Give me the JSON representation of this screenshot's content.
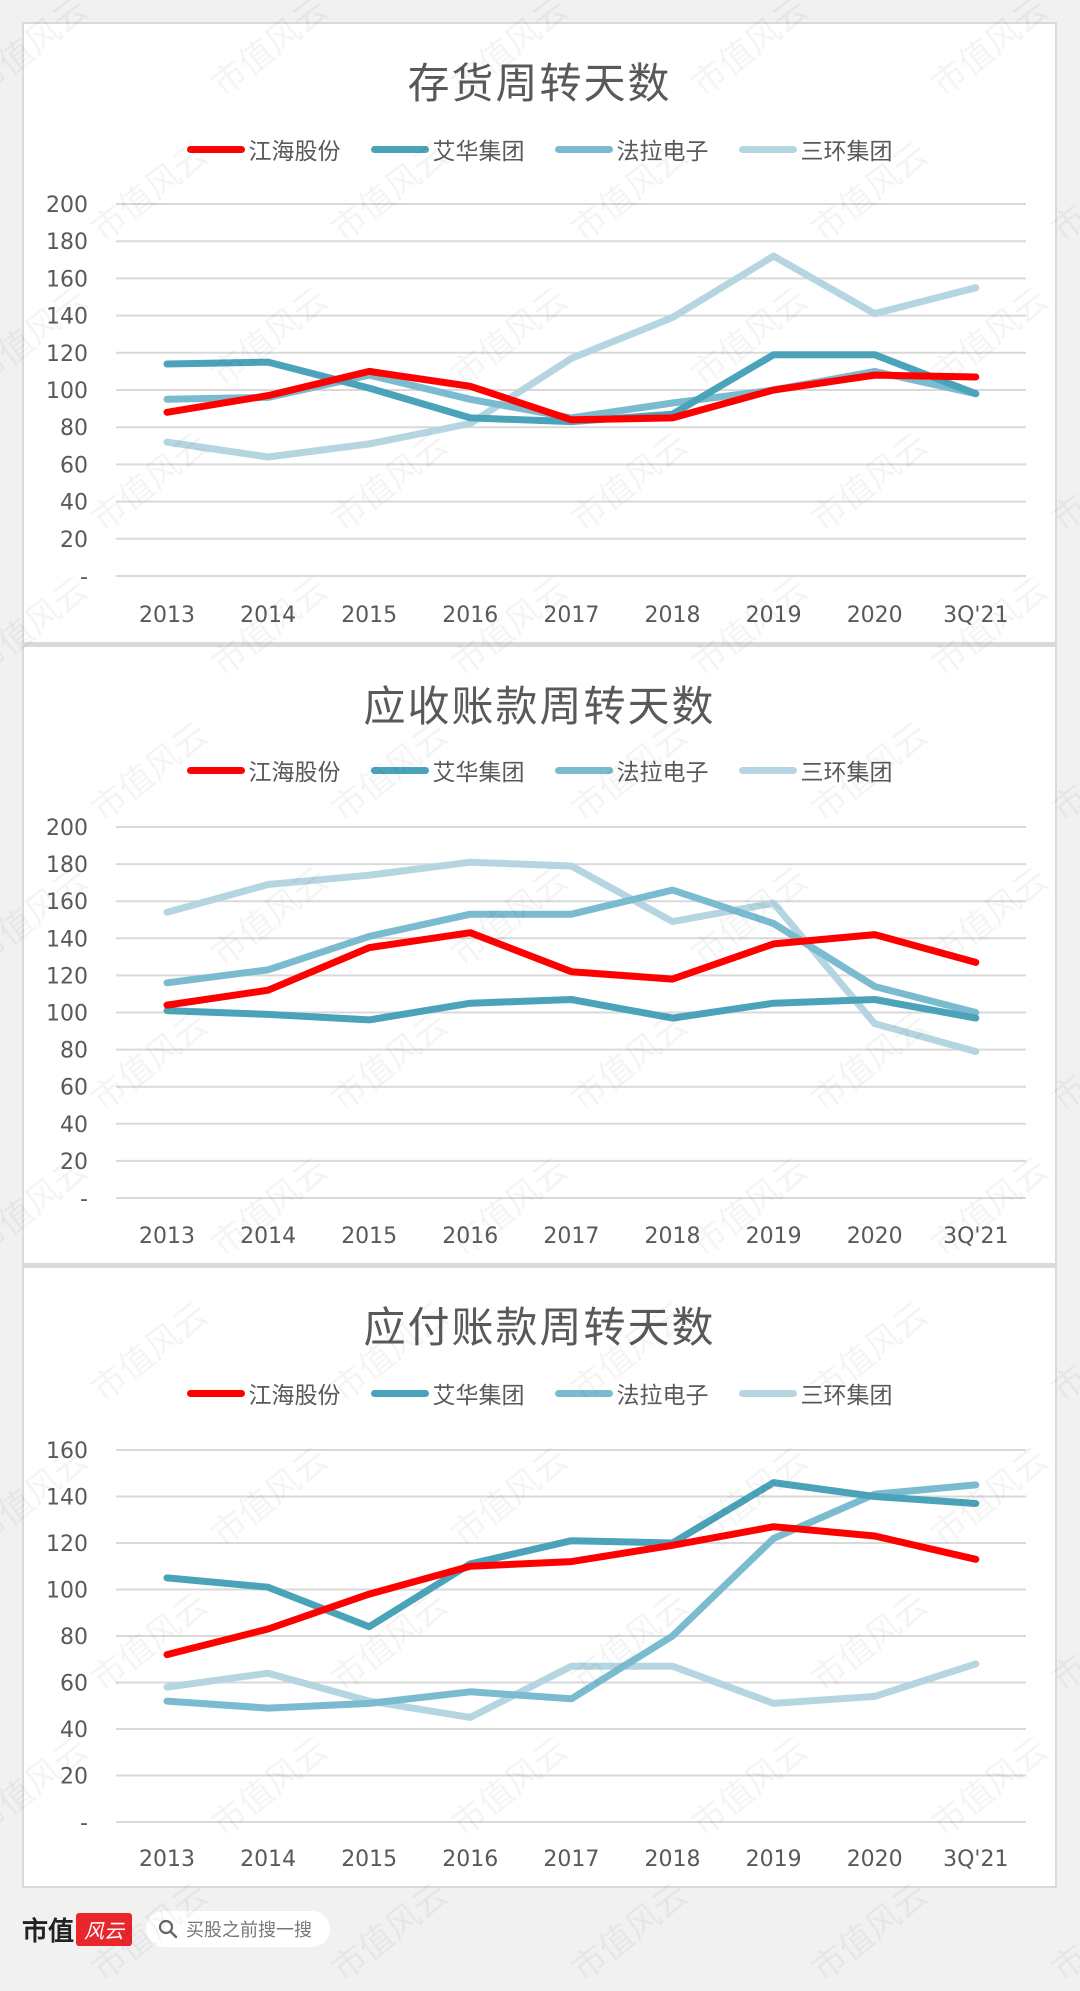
{
  "legend": {
    "series": [
      {
        "name": "江海股份",
        "color": "#FF0000"
      },
      {
        "name": "艾华集团",
        "color": "#4BA3BA"
      },
      {
        "name": "法拉电子",
        "color": "#7BBBD0"
      },
      {
        "name": "三环集团",
        "color": "#B5D6E1"
      }
    ]
  },
  "footer": {
    "brand_text": "市值",
    "brand_badge": "风云",
    "search_placeholder": "买股之前搜一搜"
  },
  "watermark_text": "市值风云",
  "chart_data": [
    {
      "type": "line",
      "title": "存货周转天数",
      "xlabel": "",
      "ylabel": "",
      "categories": [
        "2013",
        "2014",
        "2015",
        "2016",
        "2017",
        "2018",
        "2019",
        "2020",
        "3Q'21"
      ],
      "yticks": [
        "-",
        "20",
        "40",
        "60",
        "80",
        "100",
        "120",
        "140",
        "160",
        "180",
        "200"
      ],
      "ylim": [
        0,
        200
      ],
      "grid": true,
      "legend_position": "top",
      "series": [
        {
          "name": "江海股份",
          "color": "#FF0000",
          "values": [
            88,
            97,
            110,
            102,
            84,
            85,
            100,
            108,
            107
          ]
        },
        {
          "name": "艾华集团",
          "color": "#4BA3BA",
          "values": [
            114,
            115,
            101,
            85,
            83,
            87,
            119,
            119,
            98
          ]
        },
        {
          "name": "法拉电子",
          "color": "#7BBBD0",
          "values": [
            95,
            96,
            108,
            95,
            85,
            93,
            100,
            110,
            98
          ]
        },
        {
          "name": "三环集团",
          "color": "#B5D6E1",
          "values": [
            72,
            64,
            71,
            82,
            117,
            139,
            172,
            141,
            155
          ]
        }
      ]
    },
    {
      "type": "line",
      "title": "应收账款周转天数",
      "xlabel": "",
      "ylabel": "",
      "categories": [
        "2013",
        "2014",
        "2015",
        "2016",
        "2017",
        "2018",
        "2019",
        "2020",
        "3Q'21"
      ],
      "yticks": [
        "-",
        "20",
        "40",
        "60",
        "80",
        "100",
        "120",
        "140",
        "160",
        "180",
        "200"
      ],
      "ylim": [
        0,
        200
      ],
      "grid": true,
      "legend_position": "top",
      "series": [
        {
          "name": "江海股份",
          "color": "#FF0000",
          "values": [
            104,
            112,
            135,
            143,
            122,
            118,
            137,
            142,
            127
          ]
        },
        {
          "name": "艾华集团",
          "color": "#4BA3BA",
          "values": [
            101,
            99,
            96,
            105,
            107,
            97,
            105,
            107,
            97
          ]
        },
        {
          "name": "法拉电子",
          "color": "#7BBBD0",
          "values": [
            116,
            123,
            141,
            153,
            153,
            166,
            148,
            114,
            100
          ]
        },
        {
          "name": "三环集团",
          "color": "#B5D6E1",
          "values": [
            154,
            169,
            174,
            181,
            179,
            149,
            159,
            94,
            79
          ]
        }
      ]
    },
    {
      "type": "line",
      "title": "应付账款周转天数",
      "xlabel": "",
      "ylabel": "",
      "categories": [
        "2013",
        "2014",
        "2015",
        "2016",
        "2017",
        "2018",
        "2019",
        "2020",
        "3Q'21"
      ],
      "yticks": [
        "-",
        "20",
        "40",
        "60",
        "80",
        "100",
        "120",
        "140",
        "160"
      ],
      "ylim": [
        0,
        160
      ],
      "grid": true,
      "legend_position": "top",
      "series": [
        {
          "name": "江海股份",
          "color": "#FF0000",
          "values": [
            72,
            83,
            98,
            110,
            112,
            119,
            127,
            123,
            113
          ]
        },
        {
          "name": "艾华集团",
          "color": "#4BA3BA",
          "values": [
            105,
            101,
            84,
            111,
            121,
            120,
            146,
            140,
            137
          ]
        },
        {
          "name": "法拉电子",
          "color": "#7BBBD0",
          "values": [
            52,
            49,
            51,
            56,
            53,
            80,
            122,
            141,
            145
          ]
        },
        {
          "name": "三环集团",
          "color": "#B5D6E1",
          "values": [
            58,
            64,
            52,
            45,
            67,
            67,
            51,
            54,
            68
          ]
        }
      ]
    }
  ]
}
